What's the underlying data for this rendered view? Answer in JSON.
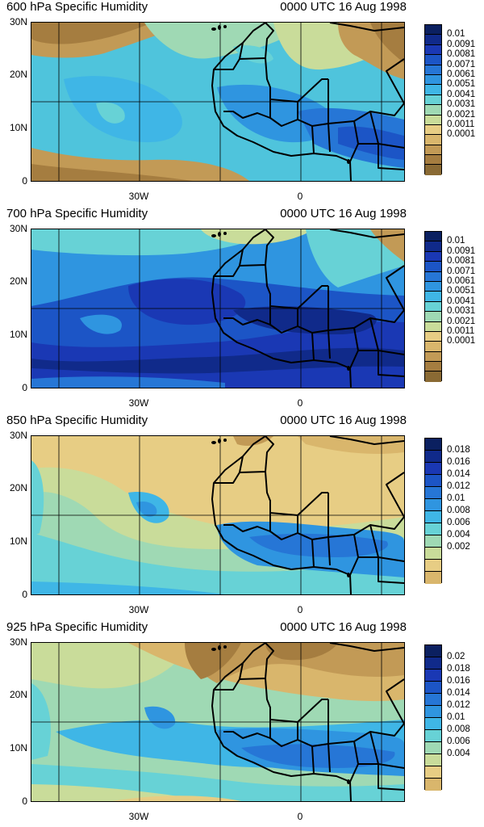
{
  "colors": {
    "levels": [
      "#8a6a34",
      "#a57d40",
      "#c29a56",
      "#d9b66c",
      "#e7cd84",
      "#c9dc9a",
      "#9fd9b4",
      "#67d2d6",
      "#3fb6e6",
      "#2f95e0",
      "#2676d6",
      "#1c55c6",
      "#1a38b4",
      "#102a8a",
      "#0b2060"
    ]
  },
  "panels": [
    {
      "title": "600 hPa Specific Humidity",
      "time": "0000 UTC 16 Aug 1998",
      "lat_labels": [
        "30N",
        "20N",
        "10N",
        "0"
      ],
      "lon_labels": [
        "30W",
        "0"
      ],
      "legend_labels": [
        "0.01",
        "0.0091",
        "0.0081",
        "0.0071",
        "0.0061",
        "0.0051",
        "0.0041",
        "0.0031",
        "0.0021",
        "0.0011",
        "0.0001"
      ]
    },
    {
      "title": "700 hPa Specific Humidity",
      "time": "0000 UTC 16 Aug 1998",
      "lat_labels": [
        "30N",
        "20N",
        "10N",
        "0"
      ],
      "lon_labels": [
        "30W",
        "0"
      ],
      "legend_labels": [
        "0.01",
        "0.0091",
        "0.0081",
        "0.0071",
        "0.0061",
        "0.0051",
        "0.0041",
        "0.0031",
        "0.0021",
        "0.0011",
        "0.0001"
      ]
    },
    {
      "title": "850 hPa Specific Humidity",
      "time": "0000 UTC 16 Aug 1998",
      "lat_labels": [
        "30N",
        "20N",
        "10N",
        "0"
      ],
      "lon_labels": [
        "30W",
        "0"
      ],
      "legend_labels": [
        "0.018",
        "0.016",
        "0.014",
        "0.012",
        "0.01",
        "0.008",
        "0.006",
        "0.004",
        "0.002"
      ]
    },
    {
      "title": "925 hPa Specific Humidity",
      "time": "0000 UTC 16 Aug 1998",
      "lat_labels": [
        "30N",
        "20N",
        "10N",
        "0"
      ],
      "lon_labels": [
        "30W",
        "0"
      ],
      "legend_labels": [
        "0.02",
        "0.018",
        "0.016",
        "0.014",
        "0.012",
        "0.01",
        "0.008",
        "0.006",
        "0.004"
      ]
    }
  ]
}
